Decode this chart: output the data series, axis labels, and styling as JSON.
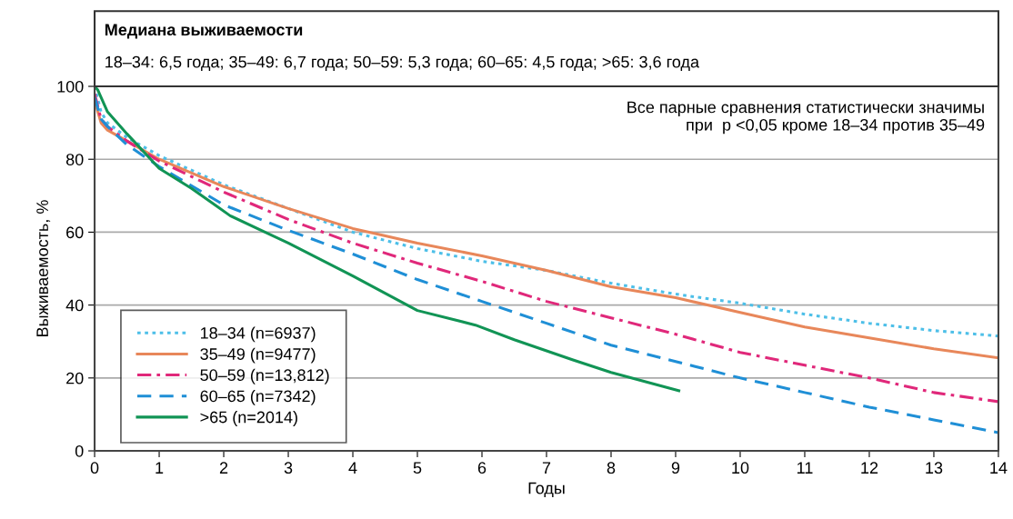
{
  "chart_data": {
    "type": "line",
    "title": "Медиана выживаемости",
    "subtitle": "18–34: 6,5 года; 35–49: 6,7 года; 50–59: 5,3 года; 60–65: 4,5 года; >65: 3,6 года",
    "xlabel": "Годы",
    "ylabel": "Выживаемость, %",
    "annotations": [
      "Все парные сравнения статистически значимы\nпри  p <0,05 кроме 18–34 против 35–49"
    ],
    "xlim": [
      0,
      14
    ],
    "ylim": [
      0,
      100
    ],
    "xticks": [
      0,
      1,
      2,
      3,
      4,
      5,
      6,
      7,
      8,
      9,
      10,
      11,
      12,
      13,
      14
    ],
    "yticks": [
      0,
      20,
      40,
      60,
      80,
      100
    ],
    "grid": "y",
    "legend": "bottom left",
    "marker": "none",
    "series": [
      {
        "name": "18–34 (n=6937)",
        "color": "#4dbfe8",
        "line_style": "dotted",
        "x": [
          0,
          0.1,
          0.2,
          0.5,
          1,
          2,
          3,
          4,
          5,
          6,
          7,
          8,
          9,
          10,
          11,
          12,
          13,
          14
        ],
        "values": [
          100,
          93,
          90,
          86,
          81,
          73,
          66.5,
          60,
          55.5,
          52,
          49.5,
          46,
          43,
          40.5,
          37.5,
          35,
          33,
          31.5
        ]
      },
      {
        "name": "35–49 (n=9477)",
        "color": "#e8875a",
        "line_style": "solid",
        "x": [
          0,
          0.1,
          0.2,
          0.5,
          1,
          2,
          3,
          4,
          5,
          6,
          7,
          8,
          9,
          10,
          10.5,
          11,
          12,
          13,
          14
        ],
        "values": [
          96,
          90,
          88,
          85,
          80,
          72.5,
          66.5,
          61,
          57,
          53.5,
          49.5,
          45,
          42,
          38,
          36,
          34,
          31,
          28,
          25.5
        ]
      },
      {
        "name": "50–59 (n=13,812)",
        "color": "#e0287a",
        "line_style": "dashdot",
        "x": [
          0,
          0.1,
          0.2,
          0.5,
          1,
          2,
          3,
          4,
          5,
          6,
          7,
          8,
          9,
          10,
          11,
          12,
          13,
          14
        ],
        "values": [
          98,
          91,
          89,
          85,
          79.5,
          71,
          63.5,
          57,
          51.5,
          46.5,
          41,
          36.5,
          32,
          27,
          23.5,
          20,
          16,
          13.5
        ]
      },
      {
        "name": "60–65 (n=7342)",
        "color": "#1f8fd6",
        "line_style": "dashed",
        "x": [
          0,
          0.1,
          0.2,
          0.5,
          1,
          2,
          3,
          4,
          5,
          6,
          7,
          8,
          9,
          10,
          11,
          12,
          13,
          14
        ],
        "values": [
          97,
          91,
          89,
          84,
          78,
          67.5,
          60.5,
          54,
          47,
          41,
          35,
          29,
          24.5,
          20,
          16,
          12,
          8.5,
          5
        ]
      },
      {
        "name": ">65 (n=2014)",
        "color": "#119455",
        "line_style": "solid",
        "x": [
          0,
          0.05,
          0.2,
          0.5,
          1,
          1.5,
          1.9,
          2.1,
          3,
          4,
          5,
          5.9,
          6.5,
          7.4,
          8,
          9.05
        ],
        "values": [
          100,
          99,
          93,
          87,
          77.5,
          72,
          67,
          64.5,
          57,
          48,
          38.5,
          34.5,
          30.5,
          25,
          21.5,
          16.5
        ]
      }
    ]
  }
}
